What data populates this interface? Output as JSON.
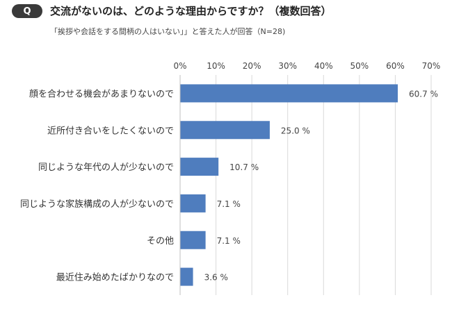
{
  "header": {
    "badge": "Q",
    "question": "交流がないのは、どのような理由からですか？（複数回答）",
    "subtitle": "「挨拶や会話をする間柄の人はいない」」と答えた人が回答（N=28)"
  },
  "chart_data": {
    "type": "bar",
    "orientation": "horizontal",
    "categories": [
      "顔を合わせる機会があまりないので",
      "近所付き合いをしたくないので",
      "同じような年代の人が少ないので",
      "同じような家族構成の人が少ないので",
      "その他",
      "最近住み始めたばかりなので"
    ],
    "values": [
      60.7,
      25.0,
      10.7,
      7.1,
      7.1,
      3.6
    ],
    "value_labels": [
      "60.7 %",
      "25.0 %",
      "10.7 %",
      "7.1 %",
      "7.1 %",
      "3.6 %"
    ],
    "xlim": [
      0,
      70
    ],
    "ticks": [
      0,
      10,
      20,
      30,
      40,
      50,
      60,
      70
    ],
    "tick_labels": [
      "0%",
      "10%",
      "20%",
      "30%",
      "40%",
      "50%",
      "60%",
      "70%"
    ],
    "axis_position": "top",
    "grid": true,
    "bar_color": "#4f7dbe",
    "grid_color": "#d9d9d9"
  }
}
